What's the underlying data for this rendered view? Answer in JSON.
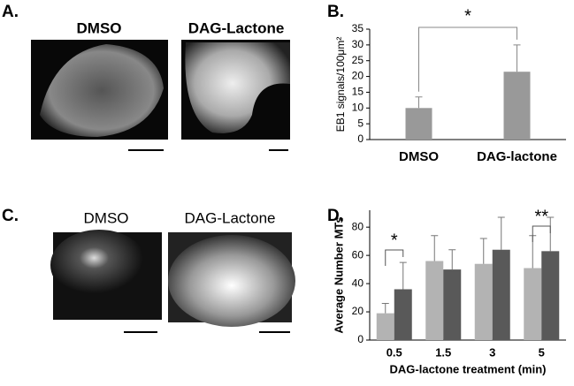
{
  "panels": [
    "A.",
    "B.",
    "C.",
    "D."
  ],
  "images": {
    "a": [
      "DMSO",
      "DAG-Lactone"
    ],
    "c": [
      "DMSO",
      "DAG-Lactone"
    ]
  },
  "chart_data": [
    {
      "type": "bar",
      "ylabel": "EB1 signals/100μm²",
      "categories": [
        "DMSO",
        "DAG-lactone"
      ],
      "values": [
        10,
        21.5
      ],
      "errors": [
        3.5,
        8.5
      ],
      "color": "#999999",
      "ylim": [
        0,
        35
      ],
      "yticks": [
        0,
        5,
        10,
        15,
        20,
        25,
        30,
        35
      ],
      "annotations": [
        "*"
      ]
    },
    {
      "type": "grouped_bar",
      "ylabel": "Average Number MTs",
      "xlabel": "DAG-lactone treatment (min)",
      "categories": [
        "0.5",
        "1.5",
        "3",
        "5"
      ],
      "series": [
        {
          "color": "#b3b3b3",
          "values": [
            19,
            56,
            54,
            51
          ],
          "errors": [
            7,
            18,
            18,
            23
          ]
        },
        {
          "color": "#595959",
          "values": [
            36,
            50,
            64,
            63
          ],
          "errors": [
            19,
            14,
            23,
            24
          ]
        }
      ],
      "ylim": [
        0,
        92
      ],
      "yticks": [
        0,
        20,
        40,
        60,
        80
      ],
      "annotations": [
        "*",
        "**"
      ]
    }
  ]
}
